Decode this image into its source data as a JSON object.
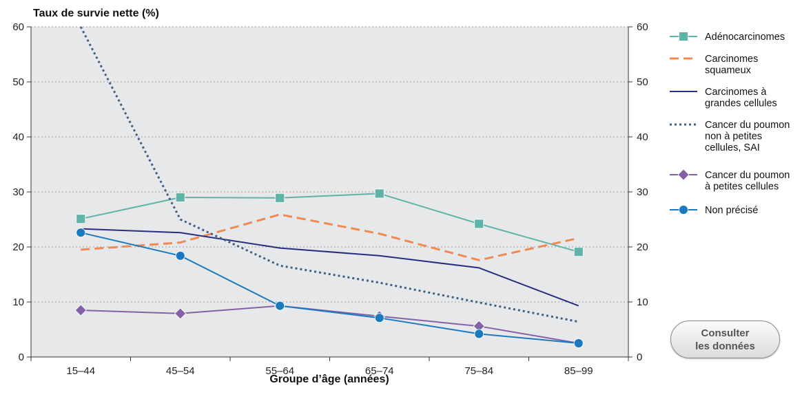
{
  "chart_data": {
    "type": "line",
    "title": "",
    "ylabel": "Taux de survie nette (%)",
    "xlabel": "Groupe d’âge (années)",
    "categories": [
      "15–44",
      "45–54",
      "55–64",
      "65–74",
      "75–84",
      "85–99"
    ],
    "ylim": [
      0,
      60
    ],
    "yticks": [
      0,
      10,
      20,
      30,
      40,
      50,
      60
    ],
    "grid": true,
    "secondary_y_axis": true,
    "legend_position": "right",
    "series": [
      {
        "name": "Adénocarcinomes",
        "values": [
          25.1,
          29.0,
          28.9,
          29.7,
          24.2,
          19.1
        ],
        "color": "#5fb3a7",
        "style": "solid",
        "marker": "square"
      },
      {
        "name": "Carcinomes squameux",
        "values": [
          19.5,
          20.8,
          25.9,
          22.4,
          17.6,
          21.6
        ],
        "color": "#ef8a55",
        "style": "dashed",
        "marker": "none"
      },
      {
        "name": "Carcinomes à grandes cellules",
        "values": [
          23.3,
          22.6,
          19.8,
          18.4,
          16.2,
          9.3
        ],
        "color": "#262f7e",
        "style": "solid",
        "marker": "none"
      },
      {
        "name": "Cancer du poumon non à petites cellules, SAI",
        "values": [
          60.0,
          25.0,
          16.6,
          13.5,
          9.9,
          6.4
        ],
        "color": "#3f5f88",
        "style": "dotted",
        "marker": "none"
      },
      {
        "name": "Cancer du poumon à petites cellules",
        "values": [
          8.5,
          7.9,
          9.3,
          7.4,
          5.6,
          2.5
        ],
        "color": "#8460a8",
        "style": "solid",
        "marker": "diamond"
      },
      {
        "name": "Non précisé",
        "values": [
          22.6,
          18.4,
          9.3,
          7.1,
          4.2,
          2.5
        ],
        "color": "#1b79bd",
        "style": "solid",
        "marker": "circle"
      }
    ],
    "legend": [
      {
        "lines": [
          "Adénocarcinomes"
        ]
      },
      {
        "lines": [
          "Carcinomes",
          "squameux"
        ]
      },
      {
        "lines": [
          "Carcinomes à",
          "grandes cellules"
        ]
      },
      {
        "lines": [
          "Cancer du poumon",
          "non à petites",
          "cellules, SAI"
        ]
      },
      {
        "lines": [
          "Cancer du poumon",
          "à petites cellules"
        ]
      },
      {
        "lines": [
          "Non précisé"
        ]
      }
    ]
  },
  "button": {
    "line1": "Consulter",
    "line2": "les données"
  }
}
